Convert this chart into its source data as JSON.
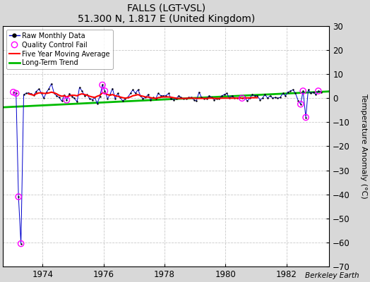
{
  "title": "FALLS (LGT-VSL)",
  "subtitle": "51.300 N, 1.817 E (United Kingdom)",
  "ylabel": "Temperature Anomaly (°C)",
  "credit": "Berkeley Earth",
  "background_color": "#d8d8d8",
  "plot_bg_color": "#ffffff",
  "ylim": [
    -70,
    30
  ],
  "yticks": [
    -70,
    -60,
    -50,
    -40,
    -30,
    -20,
    -10,
    0,
    10,
    20,
    30
  ],
  "xlim_start": 1972.7,
  "xlim_end": 1983.4,
  "xticks": [
    1974,
    1976,
    1978,
    1980,
    1982
  ],
  "raw_x": [
    1973.04,
    1973.13,
    1973.21,
    1973.29,
    1973.38,
    1973.46,
    1973.54,
    1973.63,
    1973.71,
    1973.79,
    1973.88,
    1973.96,
    1974.04,
    1974.13,
    1974.21,
    1974.29,
    1974.38,
    1974.46,
    1974.54,
    1974.63,
    1974.71,
    1974.79,
    1974.88,
    1974.96,
    1975.04,
    1975.13,
    1975.21,
    1975.29,
    1975.38,
    1975.46,
    1975.54,
    1975.63,
    1975.71,
    1975.79,
    1975.88,
    1975.96,
    1976.04,
    1976.13,
    1976.21,
    1976.29,
    1976.38,
    1976.46,
    1976.54,
    1976.63,
    1976.71,
    1976.79,
    1976.88,
    1976.96,
    1977.04,
    1977.13,
    1977.21,
    1977.29,
    1977.38,
    1977.46,
    1977.54,
    1977.63,
    1977.71,
    1977.79,
    1977.88,
    1977.96,
    1978.04,
    1978.13,
    1978.21,
    1978.29,
    1978.38,
    1978.46,
    1978.54,
    1978.63,
    1978.71,
    1978.79,
    1978.88,
    1978.96,
    1979.04,
    1979.13,
    1979.21,
    1979.29,
    1979.38,
    1979.46,
    1979.54,
    1979.63,
    1979.71,
    1979.79,
    1979.88,
    1979.96,
    1980.04,
    1980.13,
    1980.21,
    1980.29,
    1980.38,
    1980.46,
    1980.54,
    1980.63,
    1980.71,
    1980.79,
    1980.88,
    1980.96,
    1981.04,
    1981.13,
    1981.21,
    1981.29,
    1981.38,
    1981.46,
    1981.54,
    1981.63,
    1981.71,
    1981.79,
    1981.88,
    1981.96,
    1982.04,
    1982.13,
    1982.21,
    1982.29,
    1982.38,
    1982.46,
    1982.54,
    1982.63,
    1982.71,
    1982.79,
    1982.88,
    1982.96,
    1983.04,
    1983.13
  ],
  "raw_y": [
    2.5,
    2.0,
    -41.0,
    -60.5,
    1.5,
    2.0,
    2.2,
    1.8,
    1.2,
    2.8,
    3.8,
    2.2,
    0.0,
    2.5,
    4.0,
    6.0,
    2.0,
    1.0,
    0.3,
    -1.2,
    1.3,
    -0.8,
    1.8,
    0.8,
    0.0,
    -1.5,
    4.5,
    3.0,
    1.0,
    1.5,
    -0.2,
    -0.7,
    0.3,
    -2.2,
    0.8,
    5.5,
    3.0,
    -0.2,
    1.5,
    4.0,
    -0.2,
    2.0,
    0.3,
    -1.2,
    -0.2,
    0.3,
    2.0,
    3.5,
    2.0,
    3.5,
    1.0,
    -0.2,
    0.3,
    1.5,
    -0.7,
    0.3,
    -0.2,
    2.0,
    1.0,
    1.0,
    1.0,
    2.0,
    -0.2,
    -0.7,
    -0.2,
    1.0,
    0.3,
    -0.2,
    -0.2,
    0.3,
    0.3,
    -0.7,
    -1.2,
    2.5,
    0.3,
    -0.2,
    -0.2,
    1.0,
    0.3,
    -0.7,
    -0.2,
    -0.2,
    1.0,
    1.5,
    2.0,
    0.0,
    1.0,
    0.0,
    0.0,
    0.3,
    0.0,
    0.3,
    -1.2,
    0.0,
    1.5,
    1.0,
    1.0,
    -0.7,
    0.0,
    1.5,
    0.0,
    1.0,
    0.0,
    0.3,
    0.0,
    0.3,
    2.0,
    1.0,
    2.5,
    3.0,
    3.5,
    2.0,
    -1.0,
    -2.5,
    3.0,
    -8.0,
    3.5,
    2.0,
    2.5,
    1.5,
    3.0,
    2.5
  ],
  "qc_fail_x": [
    1973.04,
    1973.13,
    1973.21,
    1973.29,
    1974.79,
    1975.96,
    1976.04,
    1980.54,
    1982.46,
    1982.54,
    1982.63,
    1983.04
  ],
  "qc_fail_y": [
    2.5,
    2.0,
    -41.0,
    -60.5,
    -0.8,
    5.5,
    3.0,
    0.0,
    -2.5,
    3.0,
    -8.0,
    3.0
  ],
  "moving_avg_x": [
    1973.54,
    1973.63,
    1973.71,
    1973.79,
    1973.88,
    1973.96,
    1974.04,
    1974.13,
    1974.21,
    1974.29,
    1974.38,
    1974.46,
    1974.54,
    1974.63,
    1974.71,
    1974.79,
    1974.88,
    1974.96,
    1975.04,
    1975.13,
    1975.21,
    1975.29,
    1975.38,
    1975.46,
    1975.54,
    1975.63,
    1975.71,
    1975.79,
    1975.88,
    1975.96,
    1976.04,
    1976.13,
    1976.21,
    1976.29,
    1976.38,
    1976.46,
    1976.54,
    1976.63,
    1976.71,
    1976.79,
    1976.88,
    1976.96,
    1977.04,
    1977.13,
    1977.21,
    1977.29,
    1977.38,
    1977.46,
    1977.54,
    1977.63,
    1977.71,
    1977.79,
    1977.88,
    1977.96,
    1978.04,
    1978.13,
    1978.21,
    1978.29,
    1978.38,
    1978.46,
    1978.54,
    1978.63,
    1978.71,
    1978.79,
    1978.88,
    1978.96,
    1979.04,
    1979.13,
    1979.21,
    1979.29,
    1979.38,
    1979.46,
    1979.54,
    1979.63,
    1979.71,
    1979.79,
    1979.88,
    1979.96,
    1980.04,
    1980.13,
    1980.21,
    1980.29,
    1980.38,
    1980.46,
    1980.54,
    1980.63,
    1980.71,
    1980.79,
    1980.88,
    1980.96,
    1981.04
  ],
  "moving_avg_y": [
    1.8,
    1.5,
    1.2,
    1.8,
    2.2,
    2.2,
    2.0,
    2.0,
    2.2,
    2.5,
    2.2,
    1.8,
    1.2,
    0.8,
    1.0,
    0.5,
    1.0,
    1.2,
    1.2,
    1.0,
    1.5,
    1.8,
    1.5,
    1.2,
    0.8,
    0.5,
    0.3,
    0.8,
    1.2,
    2.2,
    2.0,
    1.5,
    1.2,
    1.5,
    1.0,
    0.8,
    0.5,
    0.2,
    0.0,
    0.2,
    0.5,
    1.0,
    1.2,
    1.5,
    1.0,
    0.8,
    0.5,
    0.5,
    0.2,
    0.0,
    -0.1,
    0.2,
    0.4,
    0.5,
    0.5,
    0.5,
    0.4,
    0.2,
    0.0,
    -0.1,
    -0.1,
    -0.1,
    -0.1,
    0.0,
    0.0,
    0.0,
    -0.1,
    -0.1,
    -0.1,
    -0.1,
    -0.1,
    0.0,
    0.0,
    -0.1,
    -0.1,
    -0.1,
    0.0,
    0.0,
    0.0,
    0.0,
    0.0,
    0.0,
    0.0,
    0.0,
    0.0,
    0.0,
    0.1,
    0.1,
    0.2,
    0.2,
    0.2
  ],
  "trend_x": [
    1972.7,
    1983.4
  ],
  "trend_y": [
    -3.8,
    2.8
  ],
  "raw_color": "#0000cc",
  "raw_dot_color": "#000000",
  "qc_color": "#ff00ff",
  "moving_avg_color": "#ff0000",
  "trend_color": "#00bb00",
  "legend_raw_label": "Raw Monthly Data",
  "legend_qc_label": "Quality Control Fail",
  "legend_avg_label": "Five Year Moving Average",
  "legend_trend_label": "Long-Term Trend"
}
